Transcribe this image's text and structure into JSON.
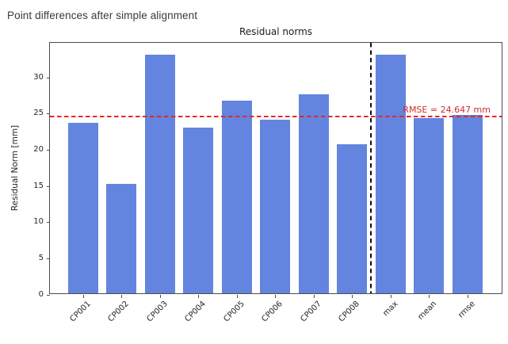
{
  "page": {
    "heading": "Point differences after simple alignment"
  },
  "chart_data": {
    "type": "bar",
    "title": "Residual norms",
    "xlabel": "",
    "ylabel": "Residual Norm [mm]",
    "categories": [
      "CP001",
      "CP002",
      "CP003",
      "CP004",
      "CP005",
      "CP006",
      "CP007",
      "CP008",
      "max",
      "mean",
      "rmse"
    ],
    "values": [
      23.6,
      15.1,
      33.0,
      22.9,
      26.6,
      24.0,
      27.5,
      20.6,
      33.0,
      24.2,
      24.647
    ],
    "yticks": [
      0,
      5,
      10,
      15,
      20,
      25,
      30
    ],
    "ylim": [
      0,
      34.85
    ],
    "grid": false,
    "legend": false,
    "bar_color": "#6385df",
    "annotations": {
      "rmse_line": {
        "value": 24.647,
        "label": "RMSE = 24.647 mm",
        "color": "#e8262a",
        "label_color": "#cf2e2e",
        "style": "dashed"
      },
      "separator_line": {
        "between": [
          "CP008",
          "max"
        ],
        "color": "#111111",
        "style": "dashed"
      }
    }
  }
}
